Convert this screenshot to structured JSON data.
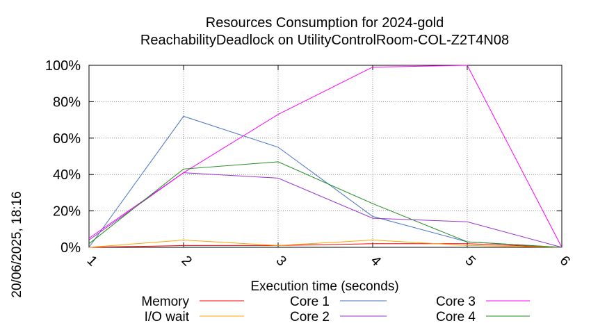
{
  "chart_data": {
    "type": "line",
    "title_line1": "Resources Consumption for 2024-gold",
    "title_line2": "ReachabilityDeadlock on UtilityControlRoom-COL-Z2T4N08",
    "xlabel": "Execution time (seconds)",
    "ylabel": "",
    "side_label": "20/06/2025, 18:16",
    "x": [
      1,
      2,
      3,
      4,
      5,
      6
    ],
    "x_ticks": [
      "1",
      "2",
      "3",
      "4",
      "5",
      "6"
    ],
    "y_ticks": [
      "0%",
      "20%",
      "40%",
      "60%",
      "80%",
      "100%"
    ],
    "xlim": [
      1,
      6
    ],
    "ylim": [
      0,
      100
    ],
    "grid": true,
    "legend_position": "bottom",
    "series": [
      {
        "name": "Memory",
        "color": "#ff0000",
        "values": [
          0,
          1,
          1,
          2,
          2,
          0
        ]
      },
      {
        "name": "I/O wait",
        "color": "#ffa500",
        "values": [
          0,
          4,
          1,
          4,
          1,
          0
        ]
      },
      {
        "name": "Core 1",
        "color": "#4472c4",
        "values": [
          0,
          72,
          55,
          17,
          3,
          0
        ]
      },
      {
        "name": "Core 2",
        "color": "#9932cc",
        "values": [
          4,
          41,
          38,
          16,
          14,
          0
        ]
      },
      {
        "name": "Core 3",
        "color": "#ff00ff",
        "values": [
          5,
          41,
          73,
          99,
          100,
          0
        ]
      },
      {
        "name": "Core 4",
        "color": "#228b22",
        "values": [
          2,
          43,
          47,
          24,
          3,
          0
        ]
      }
    ]
  }
}
